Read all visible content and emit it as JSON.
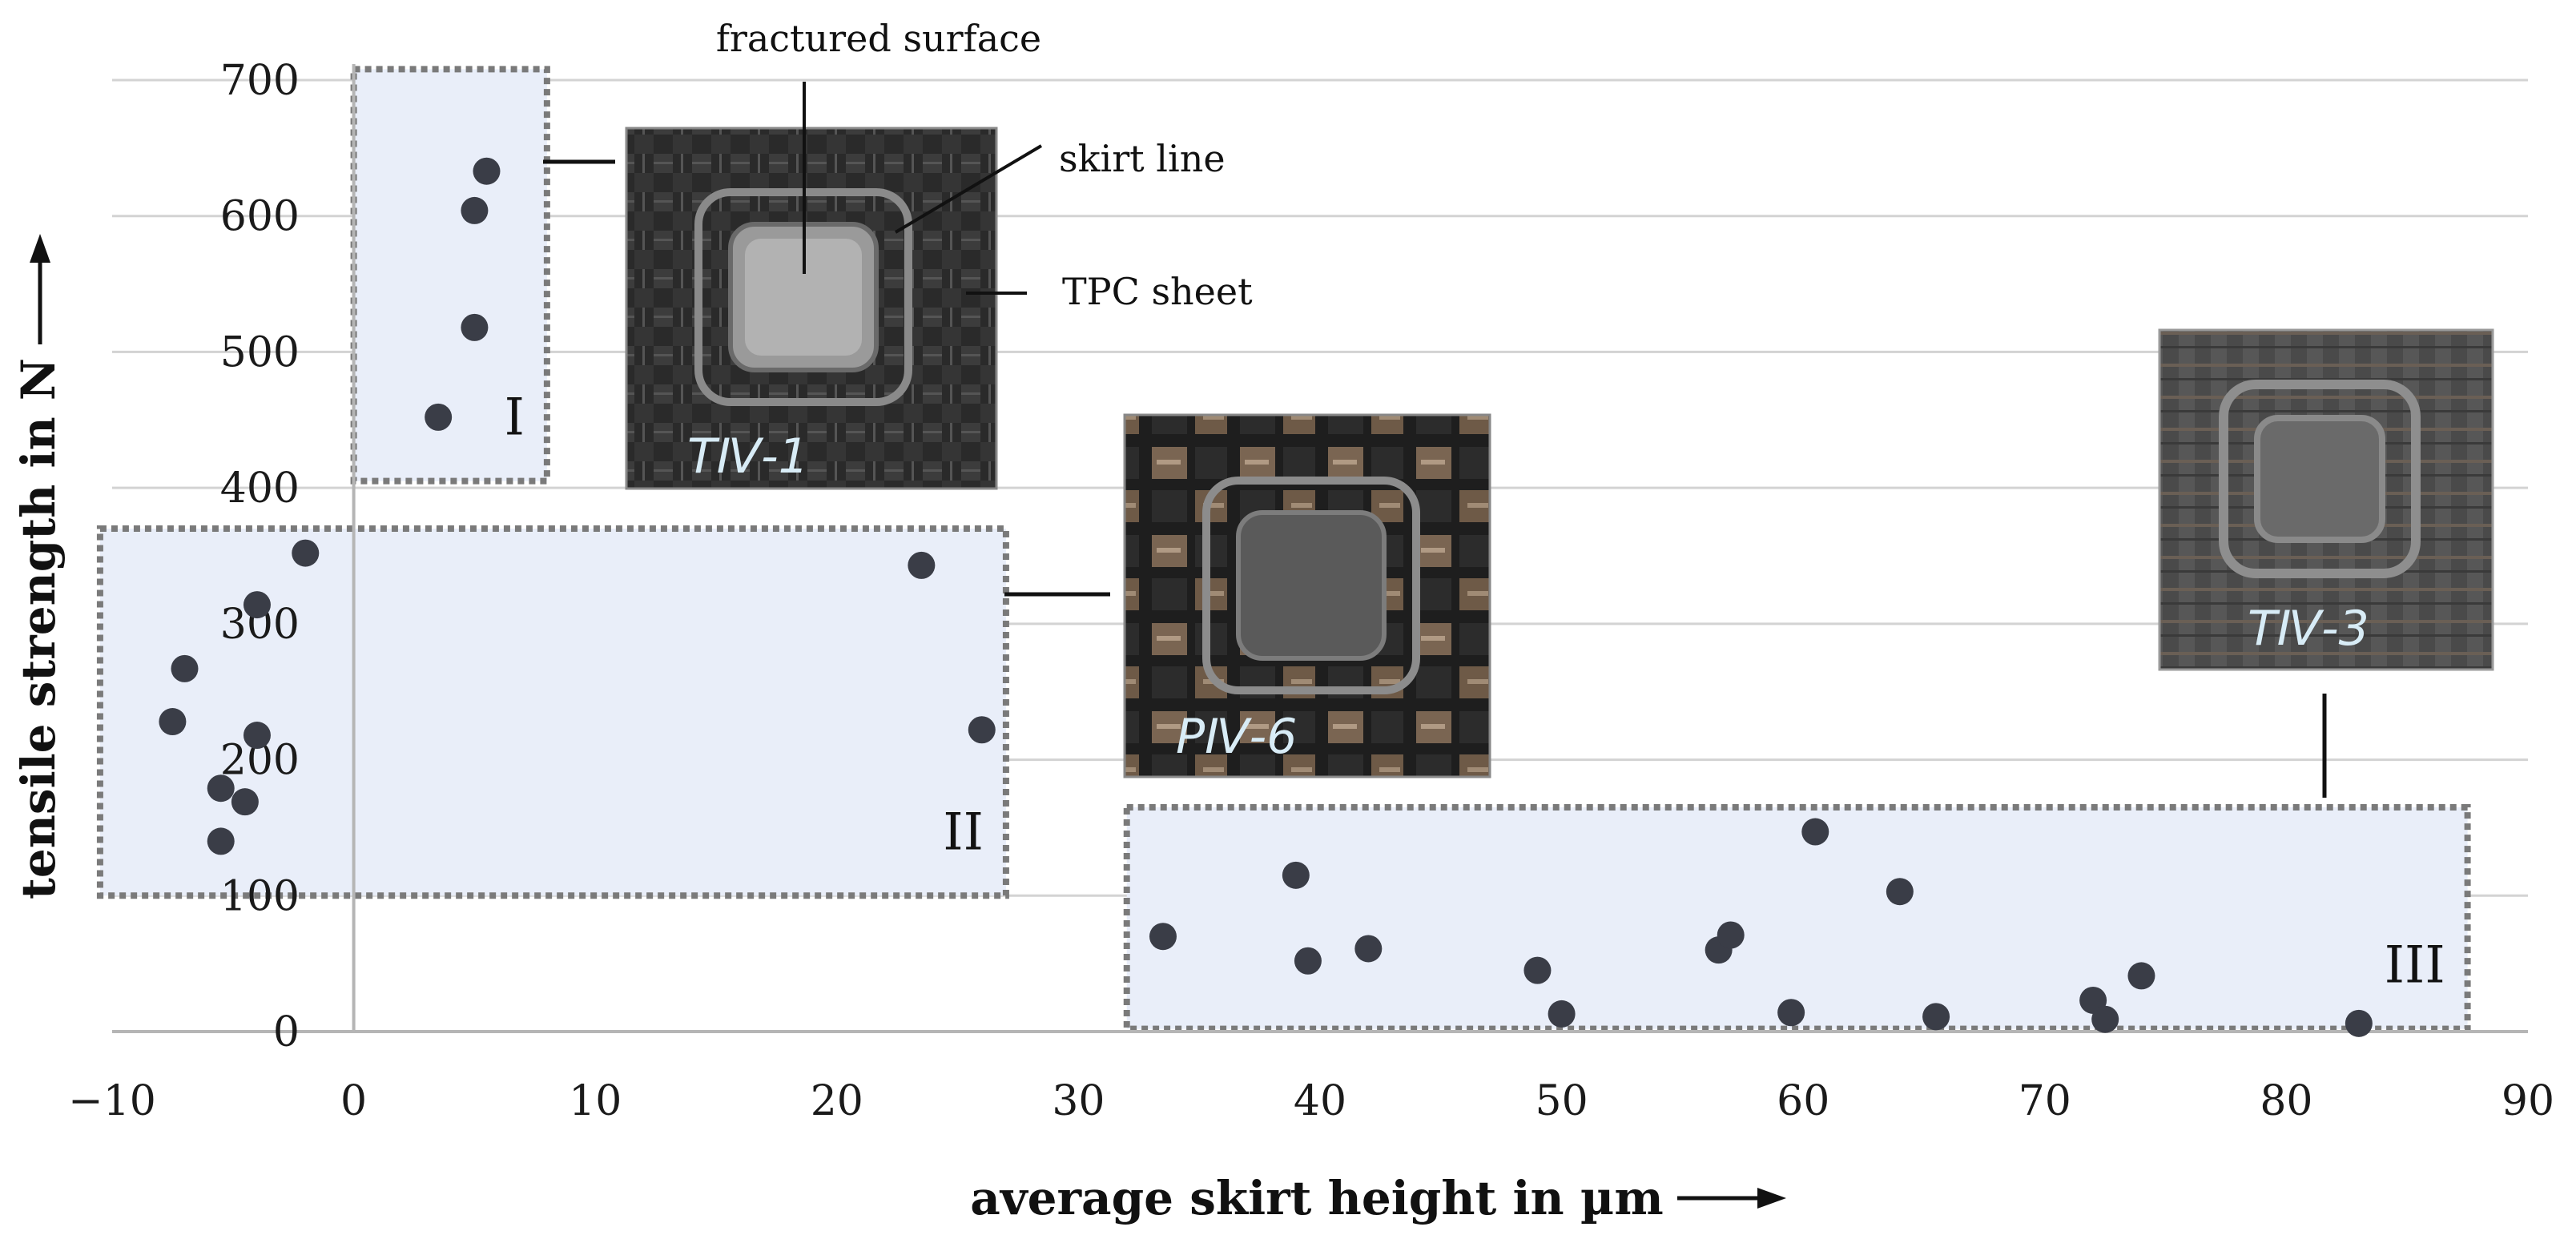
{
  "chart_data": {
    "type": "scatter",
    "xlabel": "average skirt height in µm",
    "ylabel": "tensile strength in N",
    "xlim": [
      -10,
      90
    ],
    "ylim": [
      0,
      700
    ],
    "x_ticks": [
      -10,
      0,
      10,
      20,
      30,
      40,
      50,
      60,
      70,
      80,
      90
    ],
    "y_ticks": [
      0,
      100,
      200,
      300,
      400,
      500,
      600,
      700
    ],
    "x_tick_labels": [
      "−10",
      "0",
      "10",
      "20",
      "30",
      "40",
      "50",
      "60",
      "70",
      "80",
      "90"
    ],
    "y_tick_labels": [
      "0",
      "100",
      "200",
      "300",
      "400",
      "500",
      "600",
      "700"
    ],
    "grid": "horizontal",
    "arrow_glyph": "→",
    "colors": {
      "marker": "#3a3d47",
      "region_fill": "#e9eef9",
      "region_border": "#7a7a7a",
      "grid": "#d3d3d3"
    },
    "points": [
      {
        "x": 3.5,
        "y": 452
      },
      {
        "x": 5.0,
        "y": 518
      },
      {
        "x": 5.0,
        "y": 604
      },
      {
        "x": 5.5,
        "y": 633
      },
      {
        "x": -2.0,
        "y": 352
      },
      {
        "x": -4.0,
        "y": 314
      },
      {
        "x": -7.0,
        "y": 267
      },
      {
        "x": -7.5,
        "y": 228
      },
      {
        "x": -4.0,
        "y": 218
      },
      {
        "x": -5.5,
        "y": 179
      },
      {
        "x": -4.5,
        "y": 169
      },
      {
        "x": -5.5,
        "y": 140
      },
      {
        "x": 23.5,
        "y": 343
      },
      {
        "x": 26.0,
        "y": 222
      },
      {
        "x": 33.5,
        "y": 70
      },
      {
        "x": 39.0,
        "y": 115
      },
      {
        "x": 39.5,
        "y": 52
      },
      {
        "x": 42.0,
        "y": 61
      },
      {
        "x": 49.0,
        "y": 45
      },
      {
        "x": 50.0,
        "y": 13
      },
      {
        "x": 56.5,
        "y": 60
      },
      {
        "x": 57.0,
        "y": 71
      },
      {
        "x": 59.5,
        "y": 14
      },
      {
        "x": 60.5,
        "y": 147
      },
      {
        "x": 64.0,
        "y": 103
      },
      {
        "x": 65.5,
        "y": 11
      },
      {
        "x": 72.0,
        "y": 23
      },
      {
        "x": 72.5,
        "y": 9
      },
      {
        "x": 74.0,
        "y": 41
      },
      {
        "x": 83.0,
        "y": 6
      }
    ],
    "regions": [
      {
        "label": "I",
        "x_range": [
          0,
          8
        ],
        "y_range": [
          405,
          708
        ]
      },
      {
        "label": "II",
        "x_range": [
          -10.5,
          27
        ],
        "y_range": [
          100,
          370
        ]
      },
      {
        "label": "III",
        "x_range": [
          32,
          87.5
        ],
        "y_range": [
          2,
          165
        ]
      }
    ],
    "photos": [
      {
        "label": "TⅣ-1",
        "region": "I"
      },
      {
        "label": "PⅣ-6",
        "region": "II"
      },
      {
        "label": "TⅣ-3",
        "region": "III"
      }
    ],
    "annotations": [
      "fractured surface",
      "skirt line",
      "TPC sheet"
    ]
  }
}
